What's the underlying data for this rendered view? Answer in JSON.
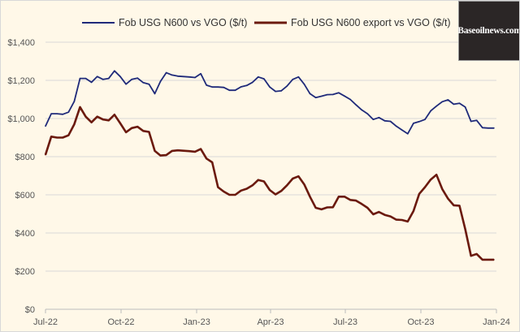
{
  "chart_data": {
    "type": "line",
    "title": "",
    "xlabel": "",
    "ylabel": "",
    "ylim": [
      0,
      1400
    ],
    "xlim": [
      "2022-07-01",
      "2024-01-01"
    ],
    "y_ticks": [
      "$0",
      "$200",
      "$400",
      "$600",
      "$800",
      "$1,000",
      "$1,200",
      "$1,400"
    ],
    "y_tick_values": [
      0,
      200,
      400,
      600,
      800,
      1000,
      1200,
      1400
    ],
    "x_ticks": [
      "Jul-22",
      "Oct-22",
      "Jan-23",
      "Apr-23",
      "Jul-23",
      "Oct-23",
      "Jan-24"
    ],
    "x_tick_dates": [
      "2022-07-01",
      "2022-10-01",
      "2023-01-01",
      "2023-04-01",
      "2023-07-01",
      "2023-10-01",
      "2024-01-01"
    ],
    "grid": "horizontal",
    "legend": "top",
    "x": [
      "2022-07-01",
      "2022-07-08",
      "2022-07-15",
      "2022-07-22",
      "2022-07-29",
      "2022-08-05",
      "2022-08-12",
      "2022-08-19",
      "2022-08-26",
      "2022-09-02",
      "2022-09-09",
      "2022-09-16",
      "2022-09-23",
      "2022-09-30",
      "2022-10-07",
      "2022-10-14",
      "2022-10-21",
      "2022-10-28",
      "2022-11-04",
      "2022-11-11",
      "2022-11-18",
      "2022-11-25",
      "2022-12-02",
      "2022-12-09",
      "2022-12-16",
      "2022-12-23",
      "2022-12-30",
      "2023-01-06",
      "2023-01-13",
      "2023-01-20",
      "2023-01-27",
      "2023-02-03",
      "2023-02-10",
      "2023-02-17",
      "2023-02-24",
      "2023-03-03",
      "2023-03-10",
      "2023-03-17",
      "2023-03-24",
      "2023-03-31",
      "2023-04-07",
      "2023-04-14",
      "2023-04-21",
      "2023-04-28",
      "2023-05-05",
      "2023-05-12",
      "2023-05-19",
      "2023-05-26",
      "2023-06-02",
      "2023-06-09",
      "2023-06-16",
      "2023-06-23",
      "2023-06-30",
      "2023-07-07",
      "2023-07-14",
      "2023-07-21",
      "2023-07-28",
      "2023-08-04",
      "2023-08-11",
      "2023-08-18",
      "2023-08-25",
      "2023-09-01",
      "2023-09-08",
      "2023-09-15",
      "2023-09-22",
      "2023-09-29",
      "2023-10-06",
      "2023-10-13",
      "2023-10-20",
      "2023-10-27",
      "2023-11-03",
      "2023-11-10",
      "2023-11-17",
      "2023-11-24",
      "2023-12-01",
      "2023-12-08",
      "2023-12-15",
      "2023-12-22",
      "2023-12-29"
    ],
    "series": [
      {
        "name": "Fob USG N600 vs VGO ($/t)",
        "color": "#1f2a7a",
        "values": [
          960,
          1025,
          1025,
          1022,
          1033,
          1090,
          1210,
          1210,
          1190,
          1220,
          1205,
          1210,
          1250,
          1220,
          1180,
          1205,
          1212,
          1188,
          1180,
          1130,
          1195,
          1240,
          1228,
          1222,
          1220,
          1218,
          1215,
          1235,
          1175,
          1165,
          1165,
          1163,
          1148,
          1148,
          1166,
          1173,
          1190,
          1218,
          1208,
          1165,
          1142,
          1145,
          1170,
          1205,
          1218,
          1180,
          1130,
          1110,
          1117,
          1125,
          1126,
          1135,
          1118,
          1100,
          1072,
          1045,
          1025,
          995,
          1005,
          988,
          985,
          960,
          940,
          920,
          975,
          984,
          995,
          1040,
          1065,
          1088,
          1098,
          1075,
          1080,
          1060,
          985,
          990,
          952,
          950,
          950
        ]
      },
      {
        "name": "Fob USG N600 export vs VGO ($/t)",
        "color": "#6b1a0e",
        "values": [
          810,
          905,
          900,
          900,
          912,
          970,
          1060,
          1010,
          980,
          1010,
          995,
          990,
          1020,
          975,
          928,
          950,
          957,
          935,
          930,
          830,
          806,
          808,
          830,
          833,
          831,
          829,
          826,
          840,
          790,
          770,
          640,
          617,
          600,
          600,
          622,
          632,
          650,
          678,
          670,
          625,
          602,
          620,
          650,
          685,
          697,
          655,
          590,
          532,
          524,
          534,
          535,
          590,
          590,
          573,
          570,
          552,
          532,
          498,
          510,
          495,
          487,
          470,
          468,
          460,
          515,
          605,
          640,
          680,
          705,
          630,
          580,
          545,
          543,
          420,
          280,
          290,
          260,
          260,
          260
        ]
      }
    ]
  },
  "watermark": "Baseoilnews.com"
}
